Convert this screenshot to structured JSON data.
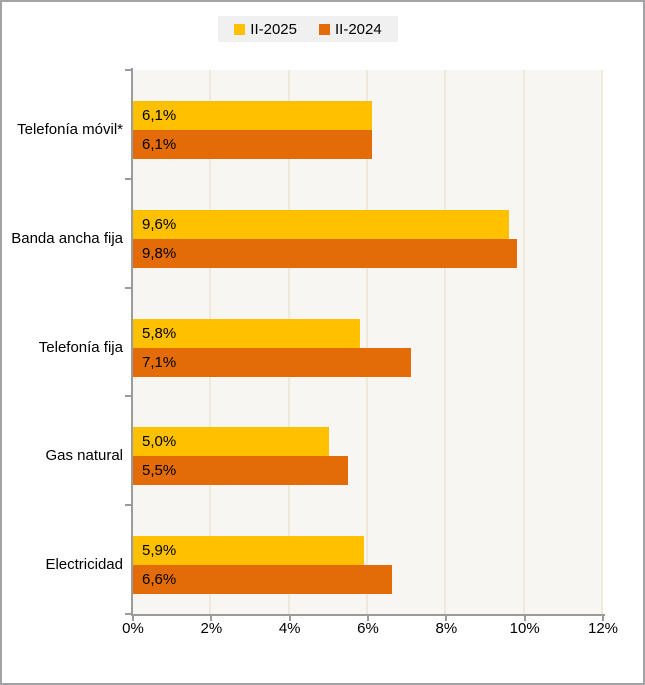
{
  "chart_data": {
    "type": "bar",
    "orientation": "horizontal",
    "title": "",
    "xlabel": "",
    "ylabel": "",
    "categories": [
      "Telefonía móvil*",
      "Banda ancha fija",
      "Telefonía fija",
      "Gas natural",
      "Electricidad"
    ],
    "series": [
      {
        "name": "II-2025",
        "color": "#FFC000",
        "values": [
          6.1,
          9.6,
          5.8,
          5.0,
          5.9
        ],
        "labels": [
          "6,1%",
          "9,6%",
          "5,8%",
          "5,0%",
          "5,9%"
        ]
      },
      {
        "name": "II-2024",
        "color": "#E36C09",
        "values": [
          6.1,
          9.8,
          7.1,
          5.5,
          6.6
        ],
        "labels": [
          "6,1%",
          "9,8%",
          "7,1%",
          "5,5%",
          "6,6%"
        ]
      }
    ],
    "xlim": [
      0,
      12
    ],
    "x_ticks": [
      "0%",
      "2%",
      "4%",
      "6%",
      "8%",
      "10%",
      "12%"
    ],
    "grid": true,
    "legend_position": "top-center",
    "plot_background": "#f7f6f3",
    "gridline_color": "#eee9da",
    "axis_color": "#9b9b9b"
  }
}
